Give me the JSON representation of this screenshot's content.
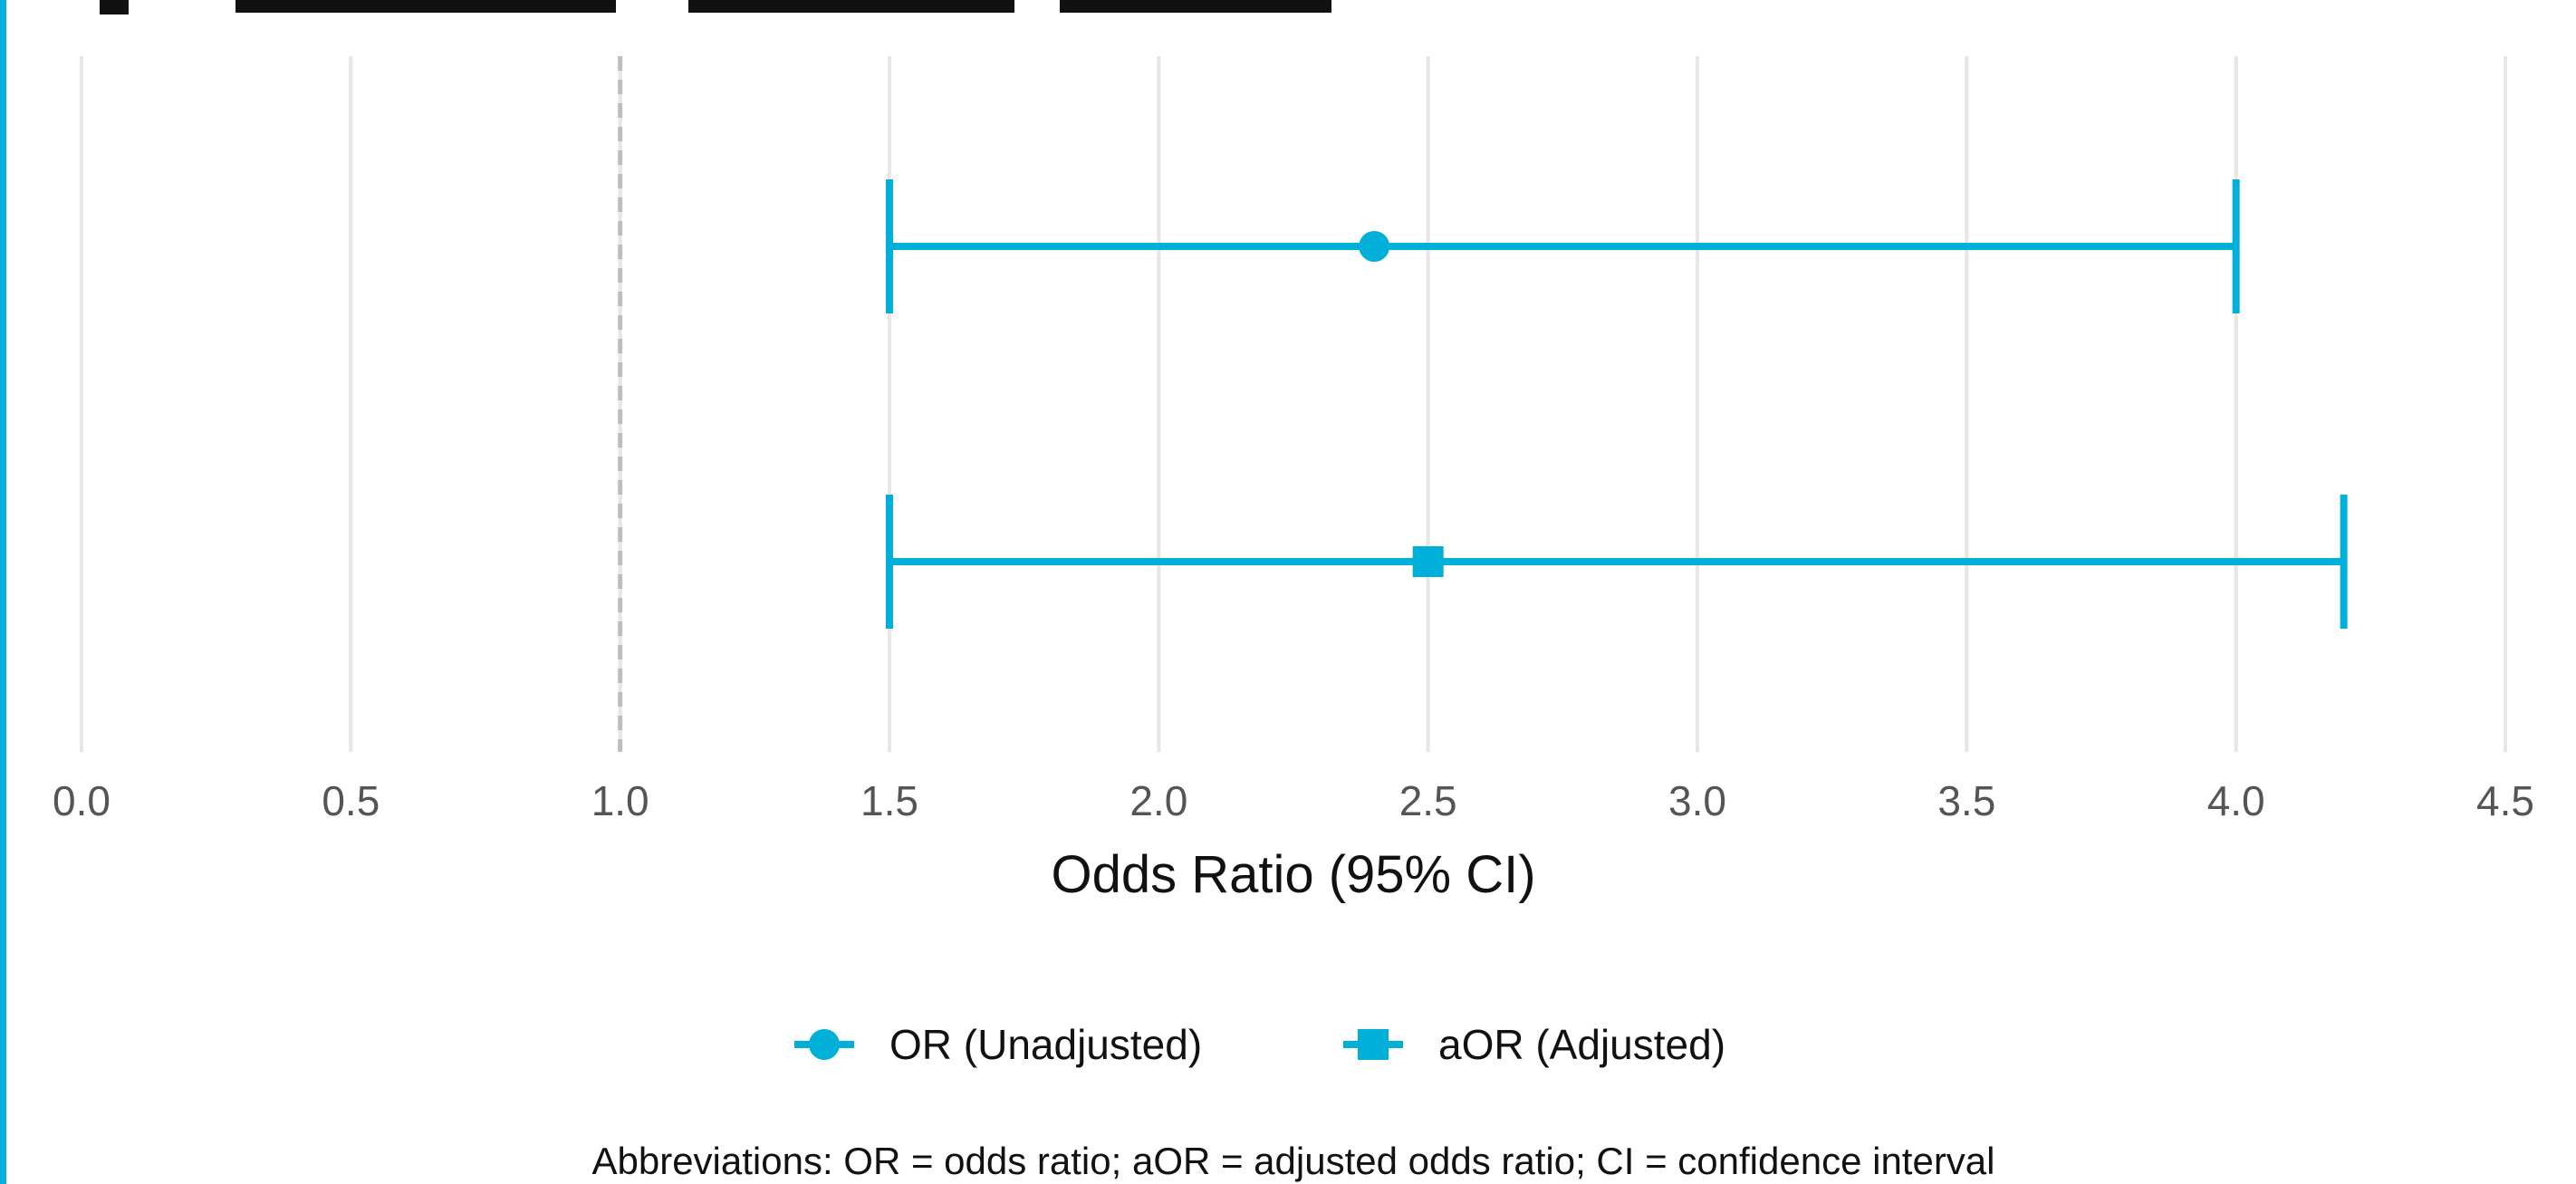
{
  "chart_data": {
    "type": "forest",
    "xlabel": "Odds Ratio (95% CI)",
    "xlim": [
      0,
      4.5
    ],
    "x_ticks": [
      0,
      0.5,
      1,
      1.5,
      2,
      2.5,
      3,
      3.5,
      4,
      4.5
    ],
    "x_tick_labels": [
      "0.0",
      "0.5",
      "1.0",
      "1.5",
      "2.0",
      "2.5",
      "3.0",
      "3.5",
      "4.0",
      "4.5"
    ],
    "reference_line": 1.0,
    "grid": true,
    "legend_position": "bottom",
    "series": [
      {
        "name": "OR (Unadjusted)",
        "marker": "circle",
        "estimate": 2.4,
        "ci_low": 1.5,
        "ci_high": 4.0
      },
      {
        "name": "aOR (Adjusted)",
        "marker": "square",
        "estimate": 2.5,
        "ci_low": 1.5,
        "ci_high": 4.2
      }
    ],
    "caption": "Abbreviations: OR = odds ratio; aOR = adjusted odds ratio; CI = confidence interval",
    "colors": {
      "accent": "#00b0d8",
      "grid": "#e6e6e6",
      "reference": "#bdbdbd"
    }
  }
}
